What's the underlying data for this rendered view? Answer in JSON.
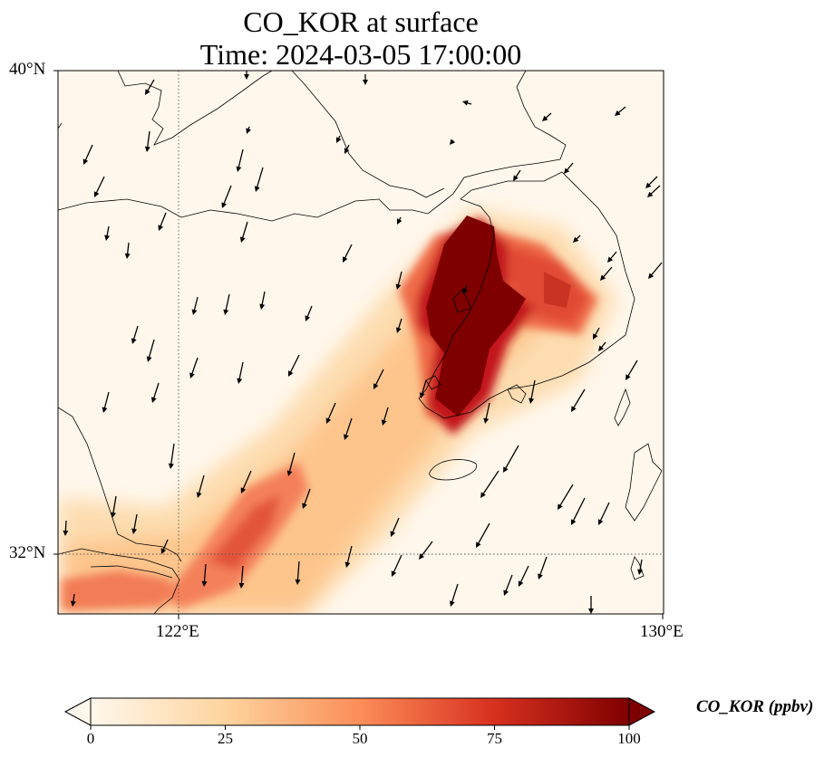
{
  "title": {
    "line1": "CO_KOR at surface",
    "line2": "Time: 2024-03-05 17:00:00"
  },
  "axes": {
    "lat_labels": [
      "40°N",
      "32°N"
    ],
    "lon_labels": [
      "122°E",
      "130°E"
    ],
    "lat_range": [
      31,
      40
    ],
    "lon_range": [
      120,
      130
    ],
    "gridlines": {
      "lat": [
        32
      ],
      "lon": [
        122
      ],
      "style": "dotted"
    }
  },
  "colorbar": {
    "label": "CO_KOR (ppbv)",
    "ticks": [
      "0",
      "25",
      "50",
      "75",
      "100"
    ],
    "range": [
      0,
      100
    ],
    "extend": "both",
    "colormap": "OrRd",
    "colors": [
      "#fff7ec",
      "#fdd49e",
      "#fc8d59",
      "#d7301f",
      "#7f0000"
    ]
  },
  "map": {
    "field": "CO_KOR",
    "level": "surface",
    "plume_description": "high concentration over western Korean peninsula extending southwest over Yellow Sea toward Shanghai",
    "wind_vectors": "predominantly northerly to northeasterly"
  }
}
